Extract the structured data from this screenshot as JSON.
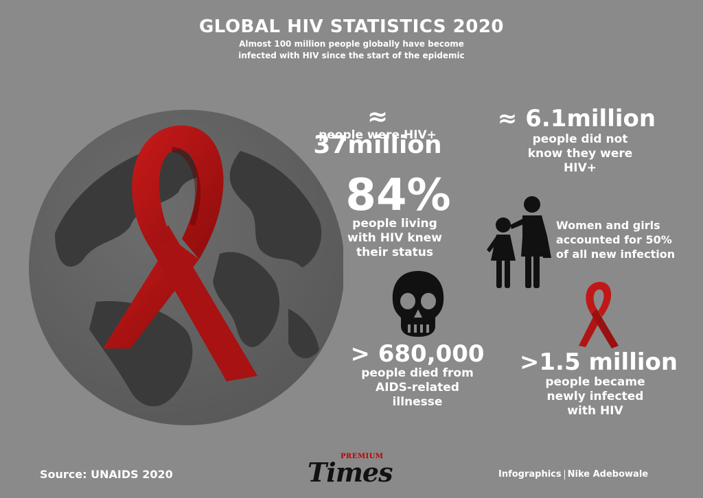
{
  "title": "GLOBAL HIV STATISTICS 2020",
  "subtitle_line1": "Almost 100 million people globally have become",
  "subtitle_line2": "infected with HIV since the start of the epidemic",
  "stats": {
    "hiv_positive": {
      "value": "≈ 37million",
      "label": "people were HIV+"
    },
    "unaware": {
      "value": "≈ 6.1million",
      "label_lines": [
        "people did not",
        "know they were",
        "HIV+"
      ]
    },
    "knew_status": {
      "value": "84%",
      "label_lines": [
        "people living",
        "with HIV knew",
        "their status"
      ]
    },
    "women": {
      "label_lines": [
        "Women and girls",
        "accounted for 50%",
        "of all new infection"
      ]
    },
    "deaths": {
      "value": "> 680,000",
      "label_lines": [
        "people died from",
        "AIDS-related",
        "illnesse"
      ]
    },
    "new_infections": {
      "value": ">1.5 million",
      "label_lines": [
        "people became",
        "newly infected",
        "with HIV"
      ]
    }
  },
  "footer": {
    "source": "Source: UNAIDS 2020",
    "logo_top": "PREMIUM",
    "logo_main": "Times",
    "credit_left": "Infographics",
    "credit_right": "Nike Adebowale"
  },
  "icons": {
    "globe": "globe-icon",
    "ribbon": "red-ribbon-icon",
    "skull": "skull-icon",
    "family": "mother-daughter-icon",
    "small_ribbon": "small-red-ribbon-icon"
  },
  "colors": {
    "background": "#8a8a8a",
    "globe": "#3b3b3b",
    "ribbon": "#b01414",
    "text": "#ffffff"
  }
}
